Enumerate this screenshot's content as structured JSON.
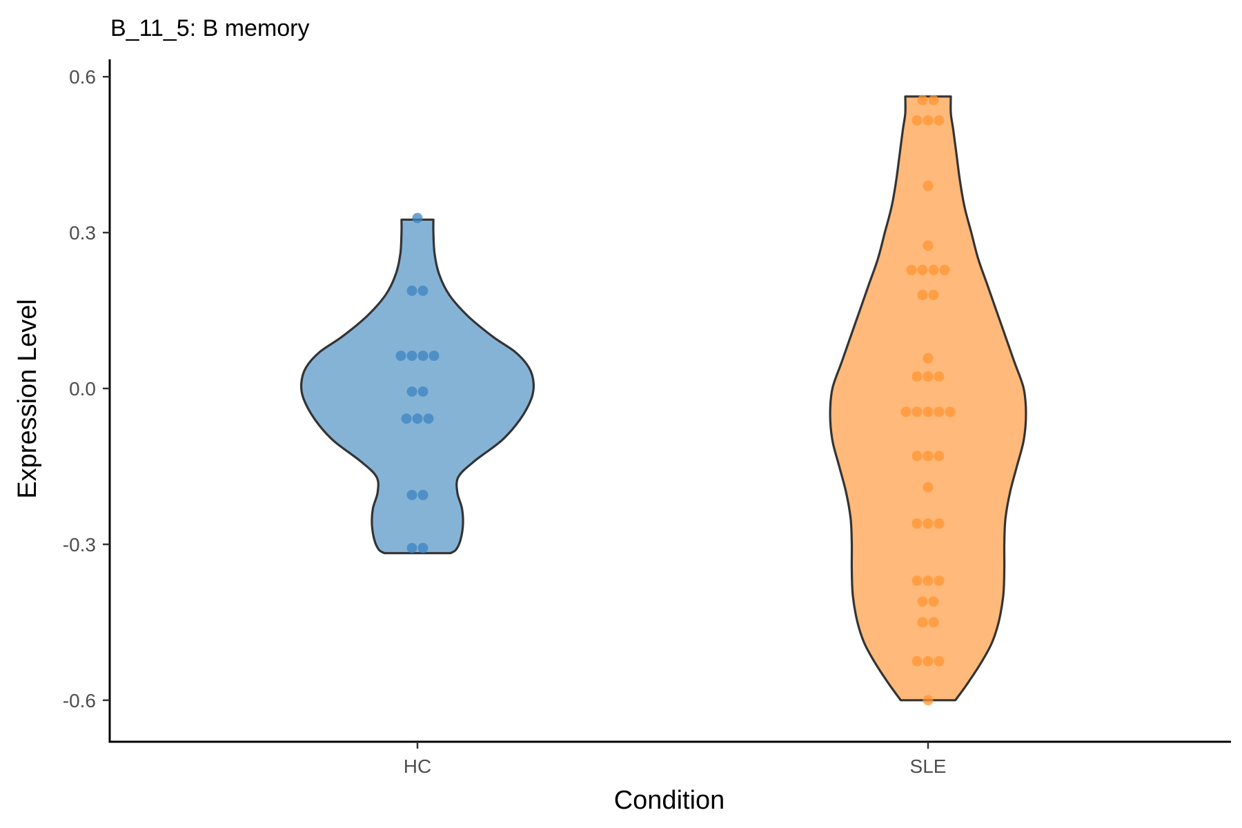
{
  "chart_data": {
    "type": "violin",
    "title": "B_11_5: B memory",
    "xlabel": "Condition",
    "ylabel": "Expression Level",
    "ylim": [
      -0.68,
      0.63
    ],
    "yticks": [
      -0.6,
      -0.3,
      0.0,
      0.3,
      0.6
    ],
    "ytick_labels": [
      "-0.6",
      "-0.3",
      "0.0",
      "0.3",
      "0.6"
    ],
    "categories": [
      "HC",
      "SLE"
    ],
    "grid": false,
    "legend": "none",
    "groups": [
      {
        "name": "HC",
        "fill": "#85b3d6",
        "point_color": "#3c84c0",
        "violin_profile": [
          [
            -0.317,
            0.145
          ],
          [
            -0.31,
            0.17
          ],
          [
            -0.29,
            0.19
          ],
          [
            -0.26,
            0.2
          ],
          [
            -0.23,
            0.195
          ],
          [
            -0.2,
            0.175
          ],
          [
            -0.17,
            0.18
          ],
          [
            -0.14,
            0.25
          ],
          [
            -0.1,
            0.37
          ],
          [
            -0.06,
            0.45
          ],
          [
            -0.02,
            0.5
          ],
          [
            0.01,
            0.51
          ],
          [
            0.04,
            0.49
          ],
          [
            0.07,
            0.43
          ],
          [
            0.1,
            0.33
          ],
          [
            0.14,
            0.22
          ],
          [
            0.18,
            0.14
          ],
          [
            0.22,
            0.095
          ],
          [
            0.26,
            0.075
          ],
          [
            0.3,
            0.07
          ],
          [
            0.325,
            0.07
          ]
        ],
        "points": [
          {
            "y": 0.328,
            "n": 1
          },
          {
            "y": 0.188,
            "n": 2
          },
          {
            "y": 0.063,
            "n": 4
          },
          {
            "y": -0.006,
            "n": 2
          },
          {
            "y": -0.058,
            "n": 3
          },
          {
            "y": -0.205,
            "n": 2
          },
          {
            "y": -0.307,
            "n": 2
          }
        ]
      },
      {
        "name": "SLE",
        "fill": "#ffb97a",
        "point_color": "#ff9533",
        "violin_profile": [
          [
            -0.6,
            0.12
          ],
          [
            -0.57,
            0.17
          ],
          [
            -0.53,
            0.23
          ],
          [
            -0.49,
            0.28
          ],
          [
            -0.45,
            0.31
          ],
          [
            -0.4,
            0.33
          ],
          [
            -0.35,
            0.335
          ],
          [
            -0.3,
            0.335
          ],
          [
            -0.25,
            0.34
          ],
          [
            -0.2,
            0.36
          ],
          [
            -0.15,
            0.39
          ],
          [
            -0.1,
            0.42
          ],
          [
            -0.05,
            0.43
          ],
          [
            0.0,
            0.42
          ],
          [
            0.05,
            0.38
          ],
          [
            0.1,
            0.34
          ],
          [
            0.15,
            0.3
          ],
          [
            0.2,
            0.26
          ],
          [
            0.25,
            0.22
          ],
          [
            0.3,
            0.19
          ],
          [
            0.35,
            0.16
          ],
          [
            0.4,
            0.14
          ],
          [
            0.45,
            0.125
          ],
          [
            0.5,
            0.11
          ],
          [
            0.53,
            0.1
          ],
          [
            0.562,
            0.1
          ]
        ],
        "points": [
          {
            "y": 0.555,
            "n": 2
          },
          {
            "y": 0.516,
            "n": 3
          },
          {
            "y": 0.39,
            "n": 1
          },
          {
            "y": 0.275,
            "n": 1
          },
          {
            "y": 0.228,
            "n": 4
          },
          {
            "y": 0.18,
            "n": 2
          },
          {
            "y": 0.058,
            "n": 1
          },
          {
            "y": 0.023,
            "n": 3
          },
          {
            "y": -0.045,
            "n": 5
          },
          {
            "y": -0.13,
            "n": 3
          },
          {
            "y": -0.19,
            "n": 1
          },
          {
            "y": -0.26,
            "n": 3
          },
          {
            "y": -0.37,
            "n": 3
          },
          {
            "y": -0.41,
            "n": 2
          },
          {
            "y": -0.45,
            "n": 2
          },
          {
            "y": -0.525,
            "n": 3
          },
          {
            "y": -0.6,
            "n": 1
          }
        ]
      }
    ]
  }
}
